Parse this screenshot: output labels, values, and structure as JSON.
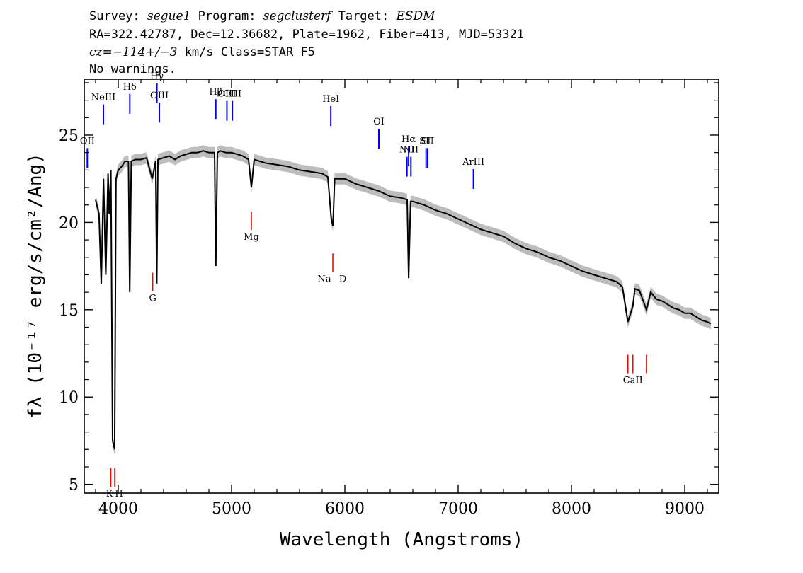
{
  "header": {
    "line1": [
      {
        "text": "Survey: ",
        "italic": false
      },
      {
        "text": "segue1",
        "italic": true
      },
      {
        "text": " Program: ",
        "italic": false
      },
      {
        "text": "segclusterf",
        "italic": true
      },
      {
        "text": " Target: ",
        "italic": false
      },
      {
        "text": "ESDM",
        "italic": true
      }
    ],
    "line2": "RA=322.42787, Dec=12.36682, Plate=1962, Fiber=413, MJD=53321",
    "line3": [
      {
        "text": "cz=−114+/−3",
        "italic": true
      },
      {
        "text": " km/s Class=STAR F5",
        "italic": false
      }
    ],
    "line4": "No warnings."
  },
  "colors": {
    "flux": "#000000",
    "error_band": "#bdbdbd",
    "emission_lines": "#0000ff",
    "absorption_lines": "#ff0000"
  },
  "chart_data": {
    "type": "line",
    "xlabel": "Wavelength (Angstroms)",
    "ylabel": "fλ (10⁻¹⁷ erg/s/cm²/Ang)",
    "xlim": [
      3700,
      9300
    ],
    "ylim": [
      4.5,
      28.2
    ],
    "xticks": [
      "4000",
      "5000",
      "6000",
      "7000",
      "8000",
      "9000"
    ],
    "yticks": [
      "5",
      "10",
      "15",
      "20",
      "25"
    ],
    "series": [
      {
        "x": [
          3800,
          3830,
          3850,
          3870,
          3890,
          3910,
          3920,
          3935,
          3950,
          3968,
          3980,
          4000,
          4030,
          4060,
          4090,
          4101,
          4115,
          4150,
          4200,
          4250,
          4300,
          4330,
          4340,
          4350,
          4400,
          4450,
          4500,
          4550,
          4600,
          4650,
          4700,
          4750,
          4800,
          4850,
          4861,
          4875,
          4900,
          4950,
          5000,
          5050,
          5100,
          5150,
          5175,
          5200,
          5250,
          5300,
          5400,
          5500,
          5600,
          5700,
          5800,
          5850,
          5880,
          5895,
          5910,
          6000,
          6100,
          6200,
          6300,
          6400,
          6500,
          6550,
          6563,
          6580,
          6600,
          6700,
          6800,
          6900,
          7000,
          7100,
          7200,
          7300,
          7400,
          7500,
          7600,
          7700,
          7800,
          7900,
          8000,
          8100,
          8200,
          8300,
          8400,
          8450,
          8498,
          8542,
          8560,
          8600,
          8662,
          8700,
          8750,
          8800,
          8850,
          8900,
          8950,
          9000,
          9050,
          9100,
          9150,
          9200,
          9230
        ],
        "y": [
          21.3,
          20.5,
          16.5,
          22.5,
          17.0,
          22.8,
          20.5,
          23.0,
          7.5,
          7.0,
          22.5,
          23.0,
          23.2,
          23.5,
          23.5,
          16.0,
          23.5,
          23.6,
          23.6,
          23.7,
          22.5,
          23.5,
          16.5,
          23.6,
          23.7,
          23.8,
          23.6,
          23.8,
          23.9,
          24.0,
          24.0,
          24.1,
          24.0,
          24.0,
          17.5,
          24.0,
          24.1,
          24.0,
          24.0,
          23.9,
          23.8,
          23.6,
          22.0,
          23.6,
          23.5,
          23.4,
          23.3,
          23.2,
          23.0,
          22.9,
          22.8,
          22.6,
          20.2,
          19.8,
          22.5,
          22.5,
          22.2,
          22.0,
          21.8,
          21.5,
          21.4,
          21.3,
          16.8,
          21.2,
          21.2,
          21.0,
          20.7,
          20.5,
          20.2,
          19.9,
          19.6,
          19.4,
          19.2,
          18.8,
          18.5,
          18.3,
          18.0,
          17.8,
          17.5,
          17.2,
          17.0,
          16.8,
          16.6,
          16.3,
          14.3,
          15.2,
          16.2,
          16.1,
          15.0,
          16.0,
          15.6,
          15.5,
          15.3,
          15.1,
          15.0,
          14.8,
          14.8,
          14.6,
          14.4,
          14.3,
          14.2
        ]
      }
    ],
    "emission_lines": [
      {
        "label": "OII",
        "x": 3727,
        "y_label": 24.5
      },
      {
        "label": "NeIII",
        "x": 3869,
        "y_label": 27.0
      },
      {
        "label": "Hδ",
        "x": 4102,
        "y_label": 27.6
      },
      {
        "label": "Hγ",
        "x": 4341,
        "y_label": 28.2
      },
      {
        "label": "OIII",
        "x": 4363,
        "y_label": 27.1
      },
      {
        "label": "Hβ",
        "x": 4861,
        "y_label": 27.3
      },
      {
        "label": "OIII",
        "x": 4959,
        "y_label": 27.2
      },
      {
        "label": "OIII",
        "x": 5007,
        "y_label": 27.2
      },
      {
        "label": "HeI",
        "x": 5876,
        "y_label": 26.9
      },
      {
        "label": "OI",
        "x": 6300,
        "y_label": 25.6
      },
      {
        "label": "NII",
        "x": 6548,
        "y_label": 24.0
      },
      {
        "label": "Hα",
        "x": 6563,
        "y_label": 24.6
      },
      {
        "label": "NII",
        "x": 6583,
        "y_label": 24.0
      },
      {
        "label": "SII",
        "x": 6717,
        "y_label": 24.5
      },
      {
        "label": "SII",
        "x": 6731,
        "y_label": 24.5
      },
      {
        "label": "ArIII",
        "x": 7135,
        "y_label": 23.3
      }
    ],
    "absorption_lines": [
      {
        "label": "K",
        "x": 3934,
        "y_label": 4.3
      },
      {
        "label": "H",
        "x": 3969,
        "y_label": 4.3
      },
      {
        "label": "G",
        "x": 4304,
        "y_label": 15.5
      },
      {
        "label": "Mg",
        "x": 5175,
        "y_label": 19.0
      },
      {
        "label": "Na",
        "x": 5894,
        "y_label": 16.6
      },
      {
        "label": "D",
        "x": 5894,
        "y_label": 16.6
      },
      {
        "label": "CaII",
        "x": 8498,
        "y_label": 10.8
      },
      {
        "label": "CaII",
        "x": 8542,
        "y_label": 10.8
      },
      {
        "label": "CaII",
        "x": 8662,
        "y_label": 10.8
      }
    ]
  }
}
